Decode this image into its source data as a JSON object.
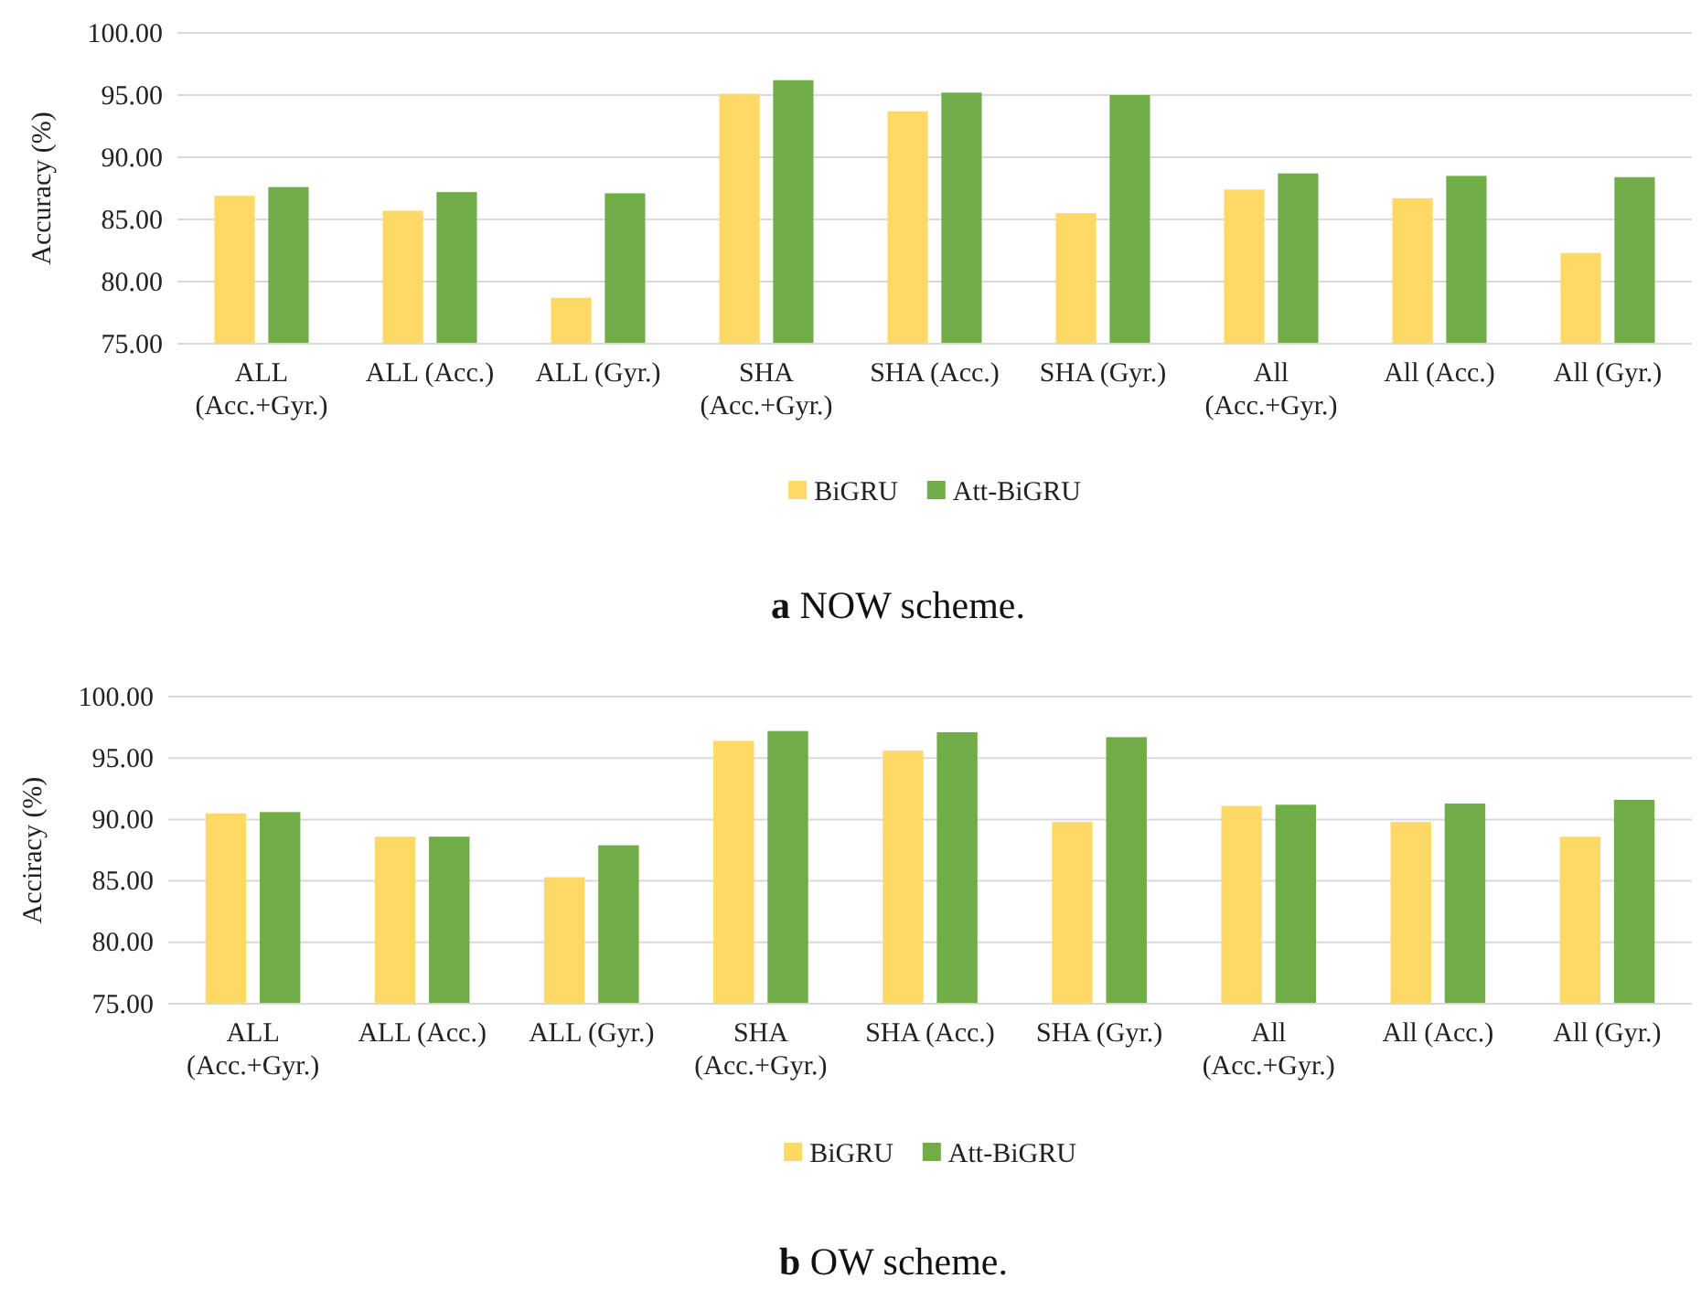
{
  "chart_data": [
    {
      "type": "bar",
      "title": "a NOW scheme.",
      "ylabel": "Accuracy (%)",
      "categories": [
        "ALL (Acc.+Gyr.)",
        "ALL (Acc.)",
        "ALL (Gyr.)",
        "SHA (Acc.+Gyr.)",
        "SHA (Acc.)",
        "SHA (Gyr.)",
        "All (Acc.+Gyr.)",
        "All (Acc.)",
        "All (Gyr.)"
      ],
      "series": [
        {
          "name": "BiGRU",
          "color": "#ffd966",
          "values": [
            86.9,
            85.7,
            78.7,
            95.1,
            93.7,
            85.5,
            87.4,
            86.7,
            82.3
          ]
        },
        {
          "name": "Att-BiGRU",
          "color": "#70ad47",
          "values": [
            87.6,
            87.2,
            87.1,
            96.2,
            95.2,
            95.0,
            88.7,
            88.5,
            88.4
          ]
        }
      ],
      "ylim": [
        75,
        100
      ],
      "yticks": [
        {
          "value": 75,
          "label": "75.00"
        },
        {
          "value": 80,
          "label": "80.00"
        },
        {
          "value": 85,
          "label": "85.00"
        },
        {
          "value": 90,
          "label": "90.00"
        },
        {
          "value": 95,
          "label": "95.00"
        },
        {
          "value": 100,
          "label": "100.00"
        }
      ],
      "grid": "y",
      "legend": "bottom"
    },
    {
      "type": "bar",
      "title": "b OW scheme.",
      "ylabel": "Acciracy (%)",
      "categories": [
        "ALL (Acc.+Gyr.)",
        "ALL (Acc.)",
        "ALL (Gyr.)",
        "SHA (Acc.+Gyr.)",
        "SHA (Acc.)",
        "SHA (Gyr.)",
        "All (Acc.+Gyr.)",
        "All (Acc.)",
        "All (Gyr.)"
      ],
      "series": [
        {
          "name": "BiGRU",
          "color": "#ffd966",
          "values": [
            90.5,
            88.6,
            85.3,
            96.4,
            95.6,
            89.8,
            91.1,
            89.8,
            88.6
          ]
        },
        {
          "name": "Att-BiGRU",
          "color": "#70ad47",
          "values": [
            90.6,
            88.6,
            87.9,
            97.2,
            97.1,
            96.7,
            91.2,
            91.3,
            91.6
          ]
        }
      ],
      "ylim": [
        75,
        100
      ],
      "yticks": [
        {
          "value": 75,
          "label": "75.00"
        },
        {
          "value": 80,
          "label": "80.00"
        },
        {
          "value": 85,
          "label": "85.00"
        },
        {
          "value": 90,
          "label": "90.00"
        },
        {
          "value": 95,
          "label": "95.00"
        },
        {
          "value": 100,
          "label": "100.00"
        }
      ],
      "grid": "y",
      "legend": "bottom"
    }
  ]
}
